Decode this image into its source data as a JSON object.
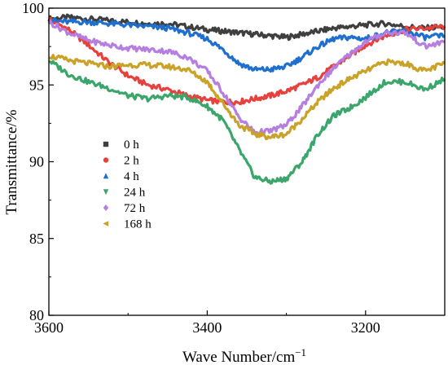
{
  "chart_data": {
    "type": "line",
    "title": "",
    "xlabel": "Wave Number/cm",
    "xlabel_sup": "−1",
    "ylabel": "Transmittance/%",
    "xlim": [
      3600,
      3100
    ],
    "ylim": [
      80,
      100
    ],
    "x_ticks": [
      "3600",
      "3400",
      "3200"
    ],
    "x_tick_values": [
      3600,
      3400,
      3200
    ],
    "y_ticks": [
      "80",
      "85",
      "90",
      "95",
      "100"
    ],
    "y_tick_values": [
      80,
      85,
      90,
      95,
      100
    ],
    "grid": false,
    "legend_position": "center-left",
    "series": [
      {
        "name": "0 h",
        "color": "#3f3f3f",
        "marker": "square",
        "x": [
          3600,
          3575,
          3550,
          3525,
          3500,
          3475,
          3450,
          3425,
          3400,
          3380,
          3360,
          3340,
          3320,
          3300,
          3280,
          3260,
          3240,
          3220,
          3200,
          3175,
          3150,
          3125,
          3100
        ],
        "y": [
          99.3,
          99.4,
          99.3,
          99.2,
          99.1,
          99.0,
          99.0,
          98.8,
          98.6,
          98.5,
          98.4,
          98.3,
          98.2,
          98.1,
          98.3,
          98.5,
          98.7,
          98.8,
          98.9,
          99.0,
          98.8,
          98.7,
          98.8
        ]
      },
      {
        "name": "2 h",
        "color": "#e8413c",
        "marker": "circle",
        "x": [
          3600,
          3575,
          3550,
          3525,
          3500,
          3475,
          3450,
          3425,
          3400,
          3380,
          3360,
          3340,
          3320,
          3300,
          3280,
          3260,
          3240,
          3220,
          3200,
          3175,
          3150,
          3125,
          3100
        ],
        "y": [
          99.3,
          98.6,
          97.6,
          96.5,
          95.6,
          95.0,
          94.7,
          94.3,
          94.0,
          93.9,
          93.9,
          94.1,
          94.3,
          94.6,
          95.0,
          95.5,
          96.2,
          96.9,
          97.6,
          98.2,
          98.6,
          98.7,
          98.8
        ]
      },
      {
        "name": "4 h",
        "color": "#1f6fce",
        "marker": "triangle-up",
        "x": [
          3600,
          3575,
          3550,
          3525,
          3500,
          3475,
          3450,
          3425,
          3400,
          3380,
          3360,
          3340,
          3320,
          3300,
          3280,
          3260,
          3240,
          3220,
          3200,
          3175,
          3150,
          3125,
          3100
        ],
        "y": [
          99.2,
          99.1,
          99.1,
          99.0,
          98.9,
          98.8,
          98.7,
          98.4,
          98.0,
          97.3,
          96.4,
          96.0,
          96.0,
          96.2,
          96.8,
          97.5,
          98.0,
          98.1,
          98.0,
          98.4,
          98.5,
          98.1,
          98.2
        ]
      },
      {
        "name": "24 h",
        "color": "#3aa66a",
        "marker": "triangle-down",
        "x": [
          3600,
          3575,
          3550,
          3525,
          3500,
          3475,
          3450,
          3425,
          3400,
          3380,
          3360,
          3340,
          3320,
          3300,
          3280,
          3260,
          3240,
          3220,
          3200,
          3175,
          3150,
          3125,
          3100
        ],
        "y": [
          96.6,
          95.7,
          95.2,
          94.8,
          94.3,
          94.1,
          94.3,
          94.2,
          93.6,
          92.7,
          90.8,
          89.0,
          88.7,
          88.9,
          90.0,
          91.8,
          93.0,
          93.5,
          94.2,
          95.2,
          95.2,
          94.7,
          95.4
        ]
      },
      {
        "name": "72 h",
        "color": "#b57ee0",
        "marker": "diamond",
        "x": [
          3600,
          3575,
          3550,
          3525,
          3500,
          3475,
          3450,
          3425,
          3400,
          3380,
          3360,
          3340,
          3320,
          3300,
          3280,
          3260,
          3240,
          3220,
          3200,
          3175,
          3150,
          3125,
          3100
        ],
        "y": [
          99.1,
          98.4,
          97.9,
          97.6,
          97.4,
          97.3,
          97.2,
          96.8,
          95.9,
          94.5,
          92.9,
          91.9,
          92.0,
          92.4,
          93.6,
          95.0,
          96.1,
          97.0,
          97.8,
          98.4,
          98.4,
          97.5,
          97.8
        ]
      },
      {
        "name": "168 h",
        "color": "#c9a227",
        "marker": "triangle-left",
        "x": [
          3600,
          3575,
          3550,
          3525,
          3500,
          3475,
          3450,
          3425,
          3400,
          3380,
          3360,
          3340,
          3320,
          3300,
          3280,
          3260,
          3240,
          3220,
          3200,
          3175,
          3150,
          3125,
          3100
        ],
        "y": [
          96.9,
          96.6,
          96.4,
          96.2,
          96.3,
          96.3,
          96.2,
          96.0,
          95.2,
          93.8,
          92.4,
          91.8,
          91.6,
          91.8,
          92.8,
          93.9,
          94.8,
          95.4,
          95.9,
          96.5,
          96.4,
          95.9,
          96.4
        ]
      }
    ]
  }
}
